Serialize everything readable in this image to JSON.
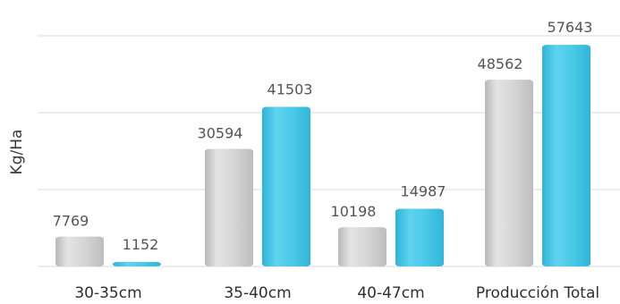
{
  "chart_data": {
    "type": "bar",
    "ylabel": "Kg/Ha",
    "categories": [
      "30-35cm",
      "35-40cm",
      "40-47cm",
      "Producción Total"
    ],
    "series": [
      {
        "values": [
          7769,
          30594,
          10198,
          48562
        ],
        "color": "#cfcfcf"
      },
      {
        "values": [
          1152,
          41503,
          14987,
          57643
        ],
        "color": "#3fc3e3"
      }
    ],
    "ylim": [
      0,
      60000
    ],
    "grid": true,
    "legend": "none"
  }
}
